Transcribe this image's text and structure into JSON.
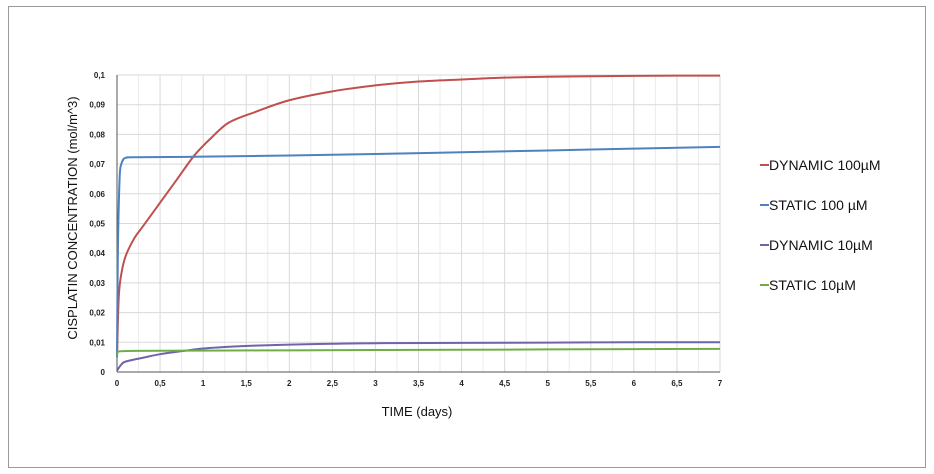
{
  "chart_data": {
    "type": "line",
    "title": "",
    "xlabel": "TIME (days)",
    "ylabel": "CISPLATIN CONCENTRATION (mol/m^3)",
    "xlim": [
      0,
      7
    ],
    "ylim": [
      0,
      0.1
    ],
    "grid": true,
    "legend_position": "right",
    "x_ticks": [
      "0",
      "0,5",
      "1",
      "1,5",
      "2",
      "2,5",
      "3",
      "3,5",
      "4",
      "4,5",
      "5",
      "5,5",
      "6",
      "6,5",
      "7"
    ],
    "y_ticks": [
      "0",
      "0,01",
      "0,02",
      "0,03",
      "0,04",
      "0,05",
      "0,06",
      "0,07",
      "0,08",
      "0,09",
      "0,1"
    ],
    "series": [
      {
        "name": "DYNAMIC 100µM",
        "color": "#c0504d",
        "x": [
          0,
          0.02,
          0.05,
          0.1,
          0.2,
          0.3,
          0.5,
          0.7,
          0.9,
          1.1,
          1.3,
          1.6,
          2,
          2.5,
          3,
          3.5,
          4,
          4.5,
          5,
          5.5,
          6,
          6.5,
          7
        ],
        "y": [
          0.005,
          0.025,
          0.033,
          0.039,
          0.045,
          0.049,
          0.057,
          0.065,
          0.073,
          0.079,
          0.084,
          0.0875,
          0.0915,
          0.0945,
          0.0965,
          0.0978,
          0.0985,
          0.0991,
          0.0994,
          0.0996,
          0.0997,
          0.0998,
          0.0998
        ]
      },
      {
        "name": "STATIC 100 µM",
        "color": "#4f81bd",
        "x": [
          0,
          0.01,
          0.03,
          0.05,
          0.08,
          0.12,
          0.2,
          1,
          2,
          3,
          4,
          5,
          6,
          7
        ],
        "y": [
          0.005,
          0.04,
          0.065,
          0.07,
          0.0718,
          0.0722,
          0.0723,
          0.0725,
          0.0729,
          0.0734,
          0.074,
          0.0746,
          0.0752,
          0.0758
        ]
      },
      {
        "name": "DYNAMIC 10µM",
        "color": "#7064a8",
        "x": [
          0,
          0.05,
          0.1,
          0.3,
          0.5,
          0.8,
          1,
          1.3,
          1.6,
          2,
          2.5,
          3,
          4,
          5,
          6,
          7
        ],
        "y": [
          0.0005,
          0.0025,
          0.0035,
          0.0048,
          0.006,
          0.0072,
          0.0079,
          0.0085,
          0.0089,
          0.0092,
          0.0095,
          0.0097,
          0.0098,
          0.0099,
          0.01,
          0.01
        ]
      },
      {
        "name": "STATIC 10µM",
        "color": "#70ad47",
        "x": [
          0,
          0.01,
          0.05,
          0.2,
          1,
          2,
          3,
          4,
          5,
          6,
          7
        ],
        "y": [
          0.0055,
          0.0068,
          0.007,
          0.0071,
          0.0072,
          0.0073,
          0.0074,
          0.0075,
          0.0076,
          0.0077,
          0.0078
        ]
      }
    ]
  }
}
